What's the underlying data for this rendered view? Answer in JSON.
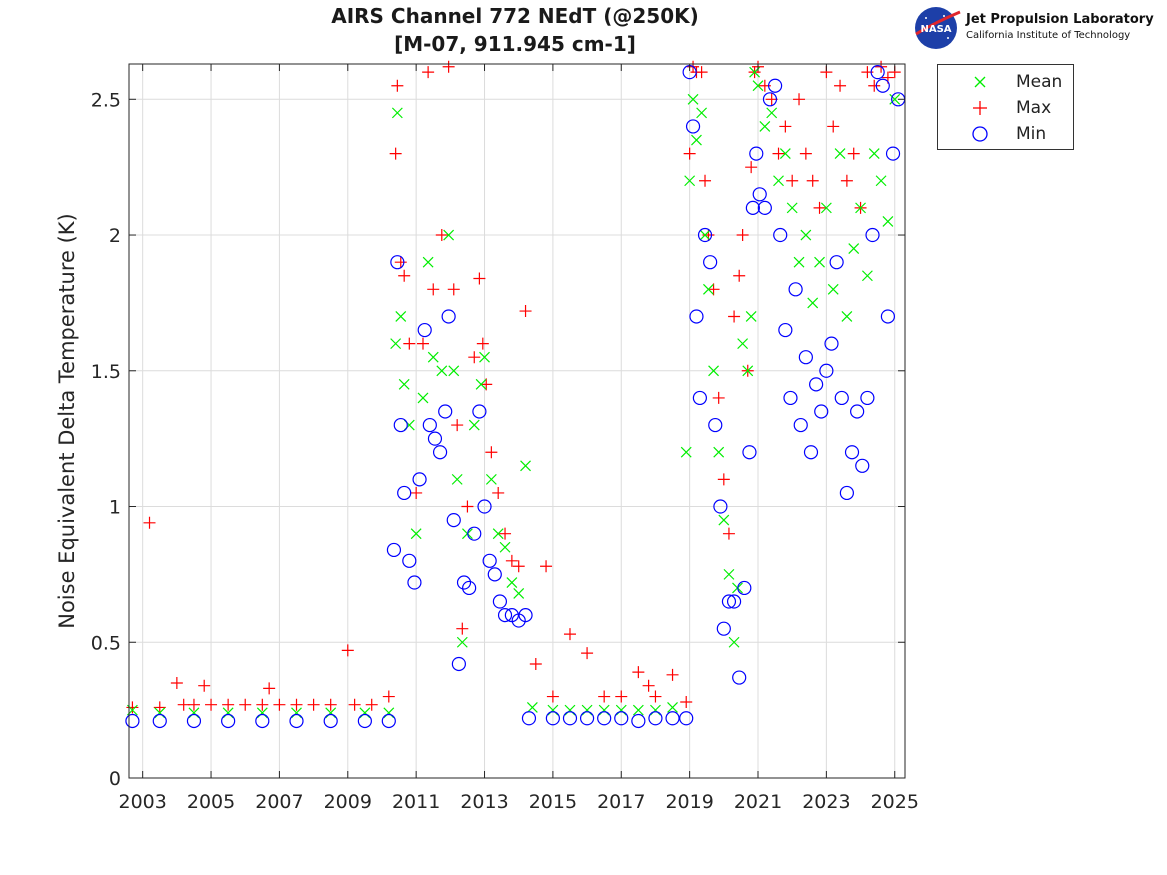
{
  "title_line1": "AIRS Channel 772 NEdT (@250K)",
  "title_line2": "[M-07, 911.945 cm-1]",
  "logo": {
    "badge": "NASA",
    "line1": "Jet Propulsion Laboratory",
    "line2": "California Institute of Technology"
  },
  "legend": {
    "placement": "top-right outside",
    "items": [
      {
        "label": "Mean",
        "marker": "x",
        "color": "#00ee00"
      },
      {
        "label": "Max",
        "marker": "+",
        "color": "#ff0000"
      },
      {
        "label": "Min",
        "marker": "o",
        "color": "#0000ff"
      }
    ]
  },
  "chart_data": {
    "type": "scatter",
    "title": "AIRS Channel 772 NEdT (@250K) [M-07, 911.945 cm-1]",
    "xlabel": "",
    "ylabel": "Noise Equivalent Delta Temperature (K)",
    "xlim": [
      2002.6,
      2025.3
    ],
    "ylim": [
      0,
      2.63
    ],
    "xticks": [
      2003,
      2005,
      2007,
      2009,
      2011,
      2013,
      2015,
      2017,
      2019,
      2021,
      2023,
      2025
    ],
    "xtick_labels": [
      "2003",
      "2005",
      "2007",
      "2009",
      "2011",
      "2013",
      "2015",
      "2017",
      "2019",
      "2021",
      "2023",
      "2025"
    ],
    "yticks": [
      0,
      0.5,
      1,
      1.5,
      2,
      2.5
    ],
    "ytick_labels": [
      "0",
      "0.5",
      "1",
      "1.5",
      "2",
      "2.5"
    ],
    "grid": true,
    "series": [
      {
        "name": "Mean",
        "marker": "x",
        "color": "#00ee00",
        "x": [
          2002.7,
          2003.5,
          2004.5,
          2005.5,
          2006.5,
          2007.5,
          2008.5,
          2009.5,
          2010.2,
          2010.4,
          2010.45,
          2010.55,
          2010.65,
          2010.8,
          2011.0,
          2011.2,
          2011.35,
          2011.5,
          2011.75,
          2011.95,
          2012.1,
          2012.2,
          2012.35,
          2012.5,
          2012.7,
          2012.9,
          2013.0,
          2013.2,
          2013.4,
          2013.6,
          2013.8,
          2014.0,
          2014.2,
          2014.4,
          2015.0,
          2015.5,
          2016.0,
          2016.5,
          2017.0,
          2017.5,
          2018.0,
          2018.5,
          2018.9,
          2019.0,
          2019.1,
          2019.2,
          2019.35,
          2019.45,
          2019.55,
          2019.7,
          2019.85,
          2020.0,
          2020.15,
          2020.3,
          2020.4,
          2020.55,
          2020.7,
          2020.8,
          2020.9,
          2021.0,
          2021.2,
          2021.4,
          2021.6,
          2021.8,
          2022.0,
          2022.2,
          2022.4,
          2022.6,
          2022.8,
          2023.0,
          2023.2,
          2023.4,
          2023.6,
          2023.8,
          2024.0,
          2024.2,
          2024.4,
          2024.6,
          2024.8,
          2025.0
        ],
        "y": [
          0.25,
          0.24,
          0.24,
          0.24,
          0.24,
          0.24,
          0.24,
          0.24,
          0.24,
          1.6,
          2.45,
          1.7,
          1.45,
          1.3,
          0.9,
          1.4,
          1.9,
          1.55,
          1.5,
          2.0,
          1.5,
          1.1,
          0.5,
          0.9,
          1.3,
          1.45,
          1.55,
          1.1,
          0.9,
          0.85,
          0.72,
          0.68,
          1.15,
          0.26,
          0.25,
          0.25,
          0.25,
          0.25,
          0.25,
          0.25,
          0.25,
          0.26,
          1.2,
          2.2,
          2.5,
          2.35,
          2.45,
          2.0,
          1.8,
          1.5,
          1.2,
          0.95,
          0.75,
          0.5,
          0.7,
          1.6,
          1.5,
          1.7,
          2.6,
          2.55,
          2.4,
          2.45,
          2.2,
          2.3,
          2.1,
          1.9,
          2.0,
          1.75,
          1.9,
          2.1,
          1.8,
          2.3,
          1.7,
          1.95,
          2.1,
          1.85,
          2.3,
          2.2,
          2.05,
          2.5
        ]
      },
      {
        "name": "Max",
        "marker": "+",
        "color": "#ff0000",
        "x": [
          2002.7,
          2003.2,
          2003.5,
          2004.0,
          2004.2,
          2004.5,
          2004.8,
          2005.0,
          2005.5,
          2006.0,
          2006.5,
          2006.7,
          2007.0,
          2007.5,
          2008.0,
          2008.5,
          2009.0,
          2009.2,
          2009.7,
          2010.2,
          2010.4,
          2010.45,
          2010.55,
          2010.65,
          2010.8,
          2011.0,
          2011.2,
          2011.35,
          2011.5,
          2011.75,
          2011.95,
          2012.1,
          2012.2,
          2012.35,
          2012.5,
          2012.7,
          2012.85,
          2012.95,
          2013.05,
          2013.2,
          2013.4,
          2013.6,
          2013.8,
          2014.0,
          2014.2,
          2014.5,
          2014.8,
          2015.0,
          2015.5,
          2016.0,
          2016.5,
          2017.0,
          2017.5,
          2017.8,
          2018.0,
          2018.5,
          2018.9,
          2019.0,
          2019.1,
          2019.2,
          2019.35,
          2019.45,
          2019.55,
          2019.7,
          2019.85,
          2020.0,
          2020.15,
          2020.3,
          2020.45,
          2020.55,
          2020.7,
          2020.8,
          2020.9,
          2021.0,
          2021.2,
          2021.4,
          2021.6,
          2021.8,
          2022.0,
          2022.2,
          2022.4,
          2022.6,
          2022.8,
          2023.0,
          2023.2,
          2023.4,
          2023.6,
          2023.8,
          2024.0,
          2024.2,
          2024.4,
          2024.6,
          2024.8,
          2025.0
        ],
        "y": [
          0.26,
          0.94,
          0.26,
          0.35,
          0.27,
          0.27,
          0.34,
          0.27,
          0.27,
          0.27,
          0.27,
          0.33,
          0.27,
          0.27,
          0.27,
          0.27,
          0.47,
          0.27,
          0.27,
          0.3,
          2.3,
          2.55,
          1.9,
          1.85,
          1.6,
          1.05,
          1.6,
          2.6,
          1.8,
          2.0,
          2.62,
          1.8,
          1.3,
          0.55,
          1.0,
          1.55,
          1.84,
          1.6,
          1.45,
          1.2,
          1.05,
          0.9,
          0.8,
          0.78,
          1.72,
          0.42,
          0.78,
          0.3,
          0.53,
          0.46,
          0.3,
          0.3,
          0.39,
          0.34,
          0.3,
          0.38,
          0.28,
          2.3,
          2.62,
          2.6,
          2.6,
          2.2,
          2.0,
          1.8,
          1.4,
          1.1,
          0.9,
          1.7,
          1.85,
          2.0,
          1.5,
          2.25,
          2.6,
          2.62,
          2.55,
          2.5,
          2.3,
          2.4,
          2.2,
          2.5,
          2.3,
          2.2,
          2.1,
          2.6,
          2.4,
          2.55,
          2.2,
          2.3,
          2.1,
          2.6,
          2.55,
          2.62,
          2.58,
          2.6
        ]
      },
      {
        "name": "Min",
        "marker": "o",
        "color": "#0000ff",
        "x": [
          2002.7,
          2003.5,
          2004.5,
          2005.5,
          2006.5,
          2007.5,
          2008.5,
          2009.5,
          2010.2,
          2010.35,
          2010.45,
          2010.55,
          2010.65,
          2010.8,
          2010.95,
          2011.1,
          2011.25,
          2011.4,
          2011.55,
          2011.7,
          2011.85,
          2011.95,
          2012.1,
          2012.25,
          2012.4,
          2012.55,
          2012.7,
          2012.85,
          2013.0,
          2013.15,
          2013.3,
          2013.45,
          2013.6,
          2013.8,
          2014.0,
          2014.2,
          2014.3,
          2015.0,
          2015.5,
          2016.0,
          2016.5,
          2017.0,
          2017.5,
          2018.0,
          2018.5,
          2018.9,
          2019.0,
          2019.1,
          2019.2,
          2019.3,
          2019.45,
          2019.6,
          2019.75,
          2019.9,
          2020.0,
          2020.15,
          2020.3,
          2020.45,
          2020.6,
          2020.75,
          2020.85,
          2020.95,
          2021.05,
          2021.2,
          2021.35,
          2021.5,
          2021.65,
          2021.8,
          2021.95,
          2022.1,
          2022.25,
          2022.4,
          2022.55,
          2022.7,
          2022.85,
          2023.0,
          2023.15,
          2023.3,
          2023.45,
          2023.6,
          2023.75,
          2023.9,
          2024.05,
          2024.2,
          2024.35,
          2024.5,
          2024.65,
          2024.8,
          2024.95,
          2025.1
        ],
        "y": [
          0.21,
          0.21,
          0.21,
          0.21,
          0.21,
          0.21,
          0.21,
          0.21,
          0.21,
          0.84,
          1.9,
          1.3,
          1.05,
          0.8,
          0.72,
          1.1,
          1.65,
          1.3,
          1.25,
          1.2,
          1.35,
          1.7,
          0.95,
          0.42,
          0.72,
          0.7,
          0.9,
          1.35,
          1.0,
          0.8,
          0.75,
          0.65,
          0.6,
          0.6,
          0.58,
          0.6,
          0.22,
          0.22,
          0.22,
          0.22,
          0.22,
          0.22,
          0.21,
          0.22,
          0.22,
          0.22,
          2.6,
          2.4,
          1.7,
          1.4,
          2.0,
          1.9,
          1.3,
          1.0,
          0.55,
          0.65,
          0.65,
          0.37,
          0.7,
          1.2,
          2.1,
          2.3,
          2.15,
          2.1,
          2.5,
          2.55,
          2.0,
          1.65,
          1.4,
          1.8,
          1.3,
          1.55,
          1.2,
          1.45,
          1.35,
          1.5,
          1.6,
          1.9,
          1.4,
          1.05,
          1.2,
          1.35,
          1.15,
          1.4,
          2.0,
          2.6,
          2.55,
          1.7,
          2.3,
          2.5
        ]
      }
    ]
  }
}
